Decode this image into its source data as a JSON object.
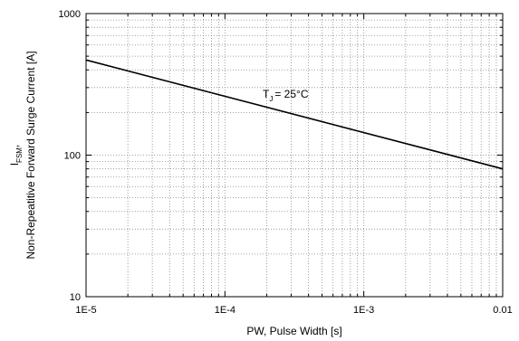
{
  "chart_data": {
    "type": "line",
    "xlabel": "PW, Pulse Width [s]",
    "ylabel": {
      "symbol": "I",
      "sub": "FSM",
      "suffix": ",",
      "line2": "Non-Repeatitive Forward Surge Current [A]"
    },
    "annotation": {
      "text": "T",
      "sub": "J",
      "rest": "= 25°C"
    },
    "x": [
      1e-05,
      0.01
    ],
    "values": [
      470,
      80
    ],
    "color": "#000000",
    "xlog": true,
    "ylog": true,
    "xlim": [
      1e-05,
      0.01
    ],
    "ylim": [
      10,
      1000
    ],
    "xticks": [
      {
        "value": 1e-05,
        "label": "1E-5"
      },
      {
        "value": 0.0001,
        "label": "1E-4"
      },
      {
        "value": 0.001,
        "label": "1E-3"
      },
      0.01
    ],
    "yticks": [
      10,
      100,
      1000
    ],
    "grid": true
  }
}
